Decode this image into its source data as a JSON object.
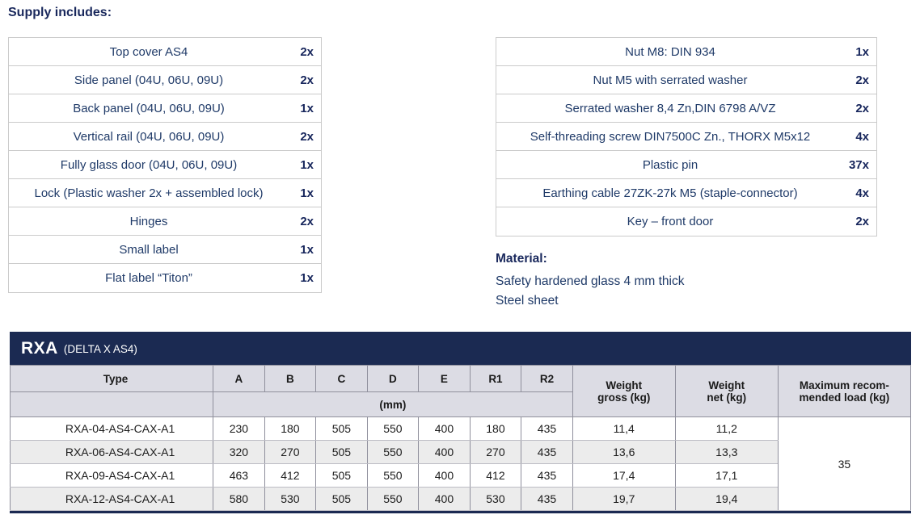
{
  "page": {
    "heading": "Supply includes:"
  },
  "colors": {
    "text_navy": "#1f3a68",
    "heading_navy": "#19285c",
    "titlebar_navy": "#1b2a52",
    "header_lavender": "#dcdce4",
    "alt_row_grey": "#ececec",
    "grid_grey": "#8f8f9c",
    "supply_border": "#cbcbcb"
  },
  "supply_left": {
    "items": [
      {
        "name": "Top cover AS4",
        "qty": "2x"
      },
      {
        "name": "Side panel (04U, 06U, 09U)",
        "qty": "2x"
      },
      {
        "name": "Back panel (04U, 06U, 09U)",
        "qty": "1x"
      },
      {
        "name": "Vertical rail (04U, 06U, 09U)",
        "qty": "2x"
      },
      {
        "name": "Fully glass door (04U, 06U, 09U)",
        "qty": "1x"
      },
      {
        "name": "Lock (Plastic washer 2x + assembled lock)",
        "qty": "1x"
      },
      {
        "name": "Hinges",
        "qty": "2x"
      },
      {
        "name": "Small label",
        "qty": "1x"
      },
      {
        "name": "Flat label “Titon”",
        "qty": "1x"
      }
    ]
  },
  "supply_right": {
    "items": [
      {
        "name": "Nut M8: DIN 934",
        "qty": "1x"
      },
      {
        "name": "Nut M5 with serrated washer",
        "qty": "2x"
      },
      {
        "name": "Serrated washer 8,4 Zn,DIN 6798 A/VZ",
        "qty": "2x"
      },
      {
        "name": "Self-threading screw DIN7500C Zn., THORX M5x12",
        "qty": "4x"
      },
      {
        "name": "Plastic pin",
        "qty": "37x"
      },
      {
        "name": "Earthing cable 27ZK-27k M5 (staple-connector)",
        "qty": "4x"
      },
      {
        "name": "Key – front door",
        "qty": "2x"
      }
    ]
  },
  "material": {
    "heading": "Material:",
    "lines": [
      "Safety hardened glass 4 mm thick",
      "Steel sheet"
    ]
  },
  "spec_table": {
    "title": "RXA",
    "subtitle": "(DELTA X AS4)",
    "type_header": "Type",
    "dim_headers": [
      "A",
      "B",
      "C",
      "D",
      "E",
      "R1",
      "R2"
    ],
    "unit_row_label": "(mm)",
    "weight_gross_header_line1": "Weight",
    "weight_gross_header_line2": "gross (kg)",
    "weight_net_header_line1": "Weight",
    "weight_net_header_line2": "net (kg)",
    "max_load_header_line1": "Maximum recom-",
    "max_load_header_line2": "mended load (kg)",
    "rows": [
      {
        "type": "RXA-04-AS4-CAX-A1",
        "dims": [
          "230",
          "180",
          "505",
          "550",
          "400",
          "180",
          "435"
        ],
        "weight_gross": "11,4",
        "weight_net": "11,2"
      },
      {
        "type": "RXA-06-AS4-CAX-A1",
        "dims": [
          "320",
          "270",
          "505",
          "550",
          "400",
          "270",
          "435"
        ],
        "weight_gross": "13,6",
        "weight_net": "13,3"
      },
      {
        "type": "RXA-09-AS4-CAX-A1",
        "dims": [
          "463",
          "412",
          "505",
          "550",
          "400",
          "412",
          "435"
        ],
        "weight_gross": "17,4",
        "weight_net": "17,1"
      },
      {
        "type": "RXA-12-AS4-CAX-A1",
        "dims": [
          "580",
          "530",
          "505",
          "550",
          "400",
          "530",
          "435"
        ],
        "weight_gross": "19,7",
        "weight_net": "19,4"
      }
    ],
    "max_load": "35"
  }
}
